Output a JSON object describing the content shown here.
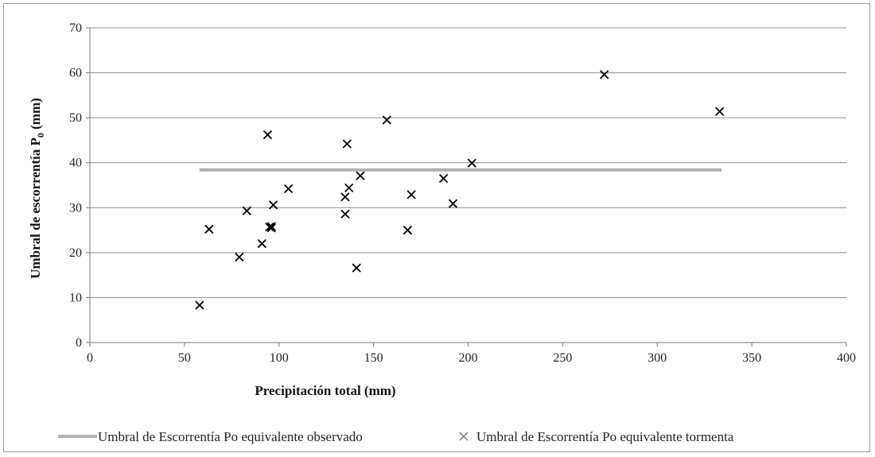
{
  "chart_data": {
    "type": "scatter",
    "title": "",
    "xlabel": "Precipitación total (mm)",
    "ylabel": "Umbral de escorrentía P",
    "ylabel_sub": "0",
    "ylabel_unit": " (mm)",
    "xlim": [
      0,
      400
    ],
    "ylim": [
      0,
      70
    ],
    "x_ticks": [
      0,
      50,
      100,
      150,
      200,
      250,
      300,
      350,
      400
    ],
    "y_ticks": [
      0,
      10,
      20,
      30,
      40,
      50,
      60,
      70
    ],
    "grid": "horizontal",
    "legend_position": "bottom",
    "colors": {
      "line": "#b0b0b0",
      "marker": "#000000",
      "grid": "#8c8c8c"
    },
    "series": [
      {
        "name": "Umbral de Escorrentía Po equivalente observado",
        "type": "line",
        "x": [
          58,
          334
        ],
        "y": [
          38.4,
          38.4
        ]
      },
      {
        "name": "Umbral de Escorrentía Po equivalente tormenta",
        "type": "scatter",
        "marker": "x",
        "x": [
          58,
          63,
          79,
          83,
          91,
          94,
          95,
          96,
          96,
          97,
          105,
          135,
          135,
          136,
          137,
          141,
          143,
          157,
          168,
          170,
          187,
          192,
          202,
          272,
          333
        ],
        "y": [
          8.3,
          25.2,
          19.0,
          29.3,
          22.0,
          46.2,
          25.7,
          25.5,
          25.8,
          30.6,
          34.2,
          32.4,
          28.6,
          44.2,
          34.4,
          16.6,
          37.1,
          49.5,
          25.0,
          32.9,
          36.5,
          30.9,
          39.9,
          59.6,
          51.4
        ]
      }
    ]
  }
}
